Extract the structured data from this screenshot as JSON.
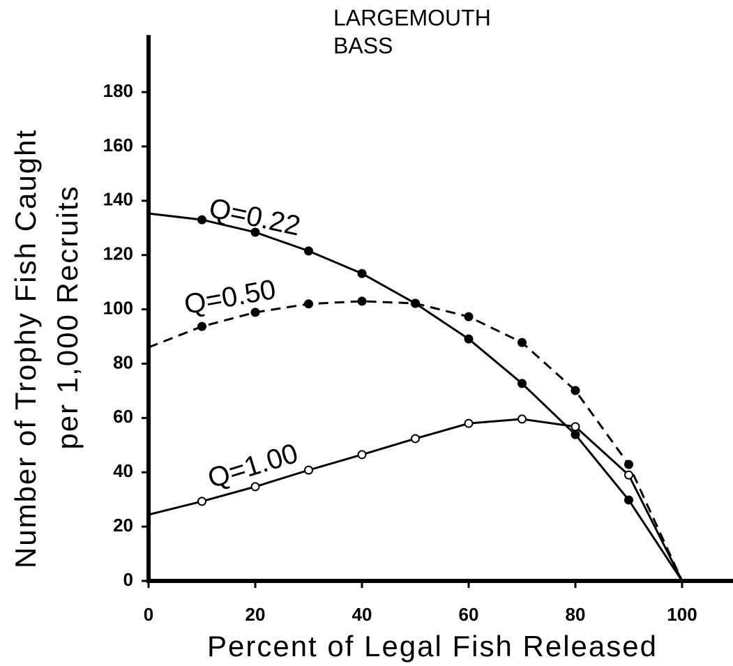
{
  "chart_data": {
    "type": "line",
    "title": [
      "LARGEMOUTH",
      "BASS"
    ],
    "xlabel": "Percent of Legal Fish Released",
    "ylabel": [
      "Number of Trophy Fish Caught",
      "per 1,000 Recruits"
    ],
    "x": [
      0,
      10,
      20,
      30,
      40,
      50,
      60,
      70,
      80,
      90,
      100
    ],
    "series": [
      {
        "name": "Q=0.22",
        "color": "#000000",
        "line_style": "solid",
        "marker": "filled",
        "values": [
          135.3,
          133,
          128.4,
          121.5,
          113.2,
          102.2,
          89.1,
          72.7,
          53.9,
          29.8,
          0
        ]
      },
      {
        "name": "Q=0.50",
        "color": "#000000",
        "line_style": "dashed",
        "marker": "filled",
        "values": [
          86,
          93.7,
          98.9,
          102,
          103,
          102.2,
          97.3,
          87.8,
          70.1,
          42.9,
          0
        ]
      },
      {
        "name": "Q=1.00",
        "color": "#000000",
        "line_style": "solid",
        "marker": "open",
        "values": [
          24.4,
          29.3,
          34.7,
          40.8,
          46.5,
          52.4,
          58,
          59.6,
          56.8,
          39,
          0
        ]
      }
    ],
    "xlim": [
      0,
      110
    ],
    "ylim": [
      0,
      201
    ],
    "xticks": [
      0,
      20,
      40,
      60,
      80,
      100
    ],
    "yticks": [
      0,
      20,
      40,
      60,
      80,
      100,
      120,
      140,
      160,
      180
    ]
  }
}
